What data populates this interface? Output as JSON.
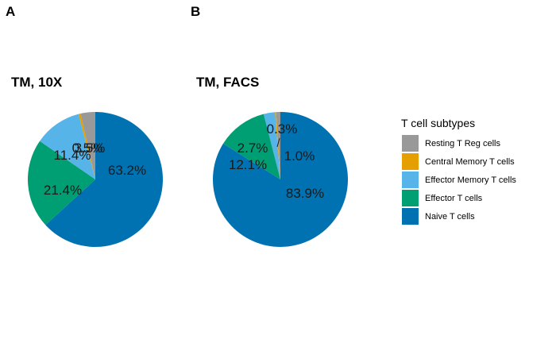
{
  "colors": {
    "resting_treg": "#999999",
    "central_memory": "#E69F00",
    "effector_memory": "#56B4E9",
    "effector": "#009E73",
    "naive": "#0072B2"
  },
  "legend": {
    "title": "T cell subtypes",
    "items": [
      {
        "label": "Resting T Reg cells",
        "color": "#999999"
      },
      {
        "label": "Central Memory T cells",
        "color": "#E69F00"
      },
      {
        "label": "Effector Memory T cells",
        "color": "#56B4E9"
      },
      {
        "label": "Effector T cells",
        "color": "#009E73"
      },
      {
        "label": "Naive T cells",
        "color": "#0072B2"
      }
    ]
  },
  "chart_data": [
    {
      "type": "pie",
      "panel": "A",
      "title": "TM, 10X",
      "slices": [
        {
          "label": "Resting T Reg cells",
          "value": 3.5,
          "text": "3.5%",
          "color": "#999999"
        },
        {
          "label": "Central Memory T cells",
          "value": 0.5,
          "text": "0.5%",
          "color": "#E69F00"
        },
        {
          "label": "Effector Memory T cells",
          "value": 11.4,
          "text": "11.4%",
          "color": "#56B4E9"
        },
        {
          "label": "Effector T cells",
          "value": 21.4,
          "text": "21.4%",
          "color": "#009E73"
        },
        {
          "label": "Naive T cells",
          "value": 63.2,
          "text": "63.2%",
          "color": "#0072B2"
        }
      ]
    },
    {
      "type": "pie",
      "panel": "B",
      "title": "TM, FACS",
      "slices": [
        {
          "label": "Resting T Reg cells",
          "value": 1.0,
          "text": "1.0%",
          "color": "#999999"
        },
        {
          "label": "Central Memory T cells",
          "value": 0.3,
          "text": "0.3%",
          "color": "#E69F00"
        },
        {
          "label": "Effector Memory T cells",
          "value": 2.7,
          "text": "2.7%",
          "color": "#56B4E9"
        },
        {
          "label": "Effector T cells",
          "value": 12.1,
          "text": "12.1%",
          "color": "#009E73"
        },
        {
          "label": "Naive T cells",
          "value": 83.9,
          "text": "83.9%",
          "color": "#0072B2"
        }
      ]
    }
  ]
}
